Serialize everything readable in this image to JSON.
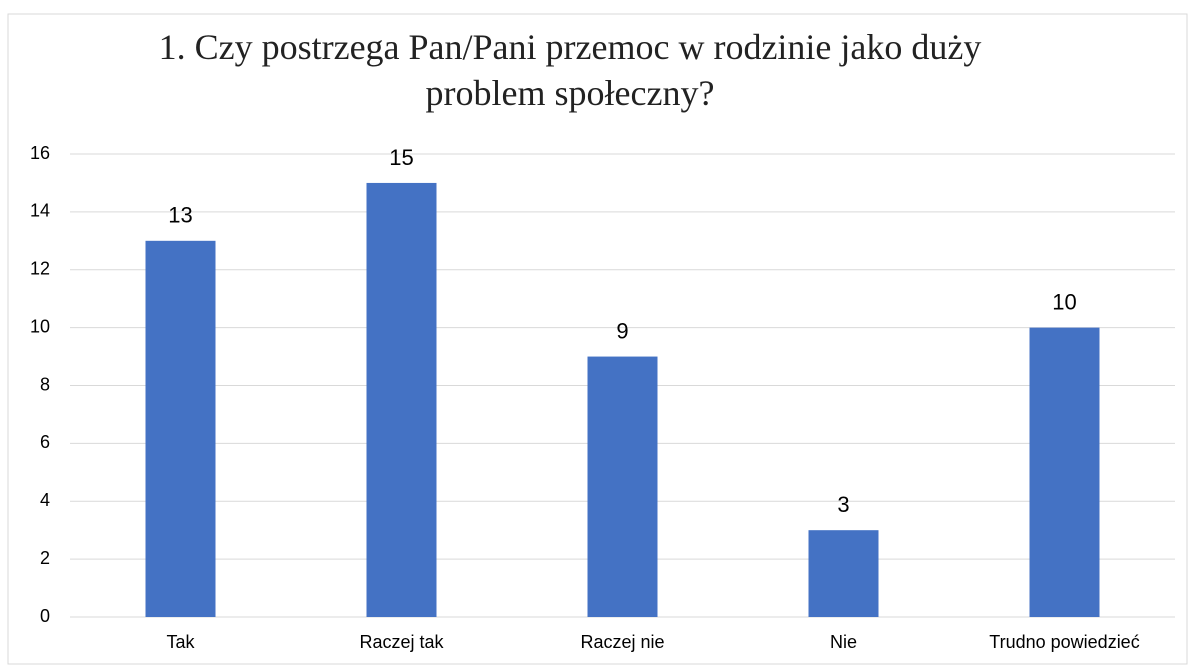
{
  "chart_data": {
    "type": "bar",
    "title": "1. Czy postrzega Pan/Pani przemoc w rodzinie jako duży problem społeczny?",
    "categories": [
      "Tak",
      "Raczej tak",
      "Raczej nie",
      "Nie",
      "Trudno powiedzieć"
    ],
    "values": [
      13,
      15,
      9,
      3,
      10
    ],
    "color": "#4472c4",
    "ylim": [
      0,
      16
    ],
    "yticks": [
      0,
      2,
      4,
      6,
      8,
      10,
      12,
      14,
      16
    ],
    "grid": true
  }
}
